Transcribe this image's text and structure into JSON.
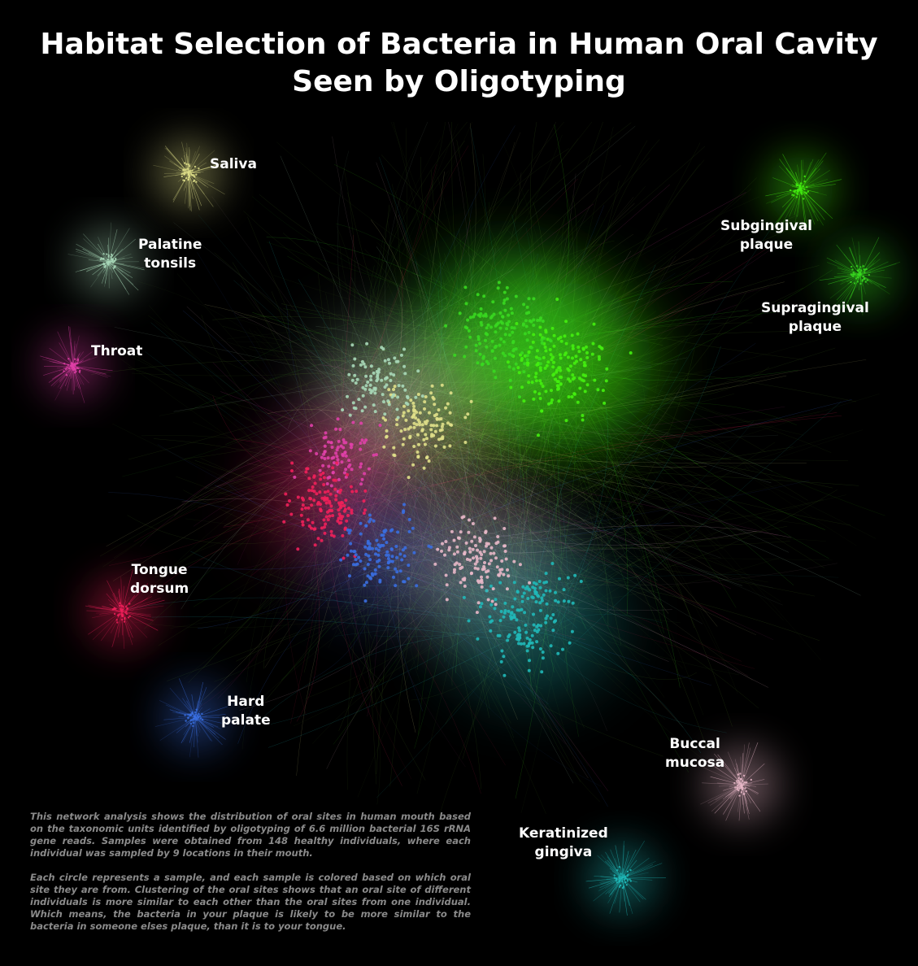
{
  "title": {
    "line1": "Habitat Selection of Bacteria in Human Oral Cavity",
    "line2": "Seen by Oligotyping"
  },
  "sites": [
    {
      "id": "saliva",
      "lines": [
        "Saliva"
      ],
      "color": "#e0e08a"
    },
    {
      "id": "palatine-tonsils",
      "lines": [
        "Palatine",
        "tonsils"
      ],
      "color": "#a8d8b8"
    },
    {
      "id": "throat",
      "lines": [
        "Throat"
      ],
      "color": "#e040a8"
    },
    {
      "id": "tongue-dorsum",
      "lines": [
        "Tongue",
        "dorsum"
      ],
      "color": "#f0205a"
    },
    {
      "id": "hard-palate",
      "lines": [
        "Hard",
        "palate"
      ],
      "color": "#3a6ee0"
    },
    {
      "id": "subgingival-plaque",
      "lines": [
        "Subgingival",
        "plaque"
      ],
      "color": "#44ee10"
    },
    {
      "id": "supragingival-plaque",
      "lines": [
        "Supragingival",
        "plaque"
      ],
      "color": "#38d820"
    },
    {
      "id": "buccal-mucosa",
      "lines": [
        "Buccal",
        "mucosa"
      ],
      "color": "#e8b8c8"
    },
    {
      "id": "keratinized-gingiva",
      "lines": [
        "Keratinized",
        "gingiva"
      ],
      "color": "#20b8b8"
    }
  ],
  "description": {
    "p1": "This network analysis shows the distribution of oral sites in human mouth based on the taxonomic units identified by oligotyping of 6.6 million bacterial 16S rRNA gene reads. Samples were obtained from 148 healthy individuals, where each individual was sampled by 9 locations in their mouth.",
    "p2": "Each circle represents a sample, and each sample is colored based on which oral site they are from. Clustering of the oral sites shows that an oral site of different individuals is more similar to each other than the oral sites from one individual. Which means, the bacteria in your plaque is likely to be more similar to the bacteria in someone elses plaque, than it is to your tongue."
  }
}
